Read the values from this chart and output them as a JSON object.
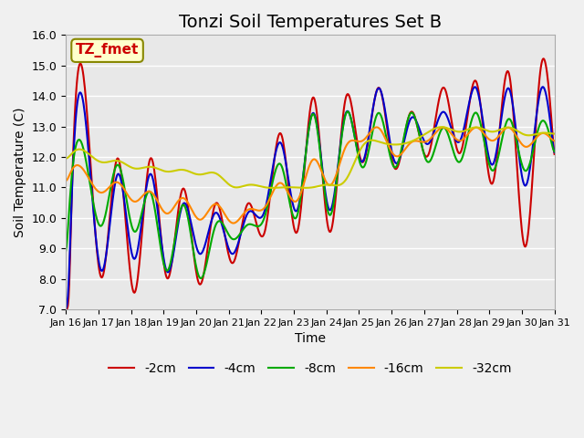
{
  "title": "Tonzi Soil Temperatures Set B",
  "xlabel": "Time",
  "ylabel": "Soil Temperature (C)",
  "ylim": [
    7.0,
    16.0
  ],
  "yticks": [
    7.0,
    8.0,
    9.0,
    10.0,
    11.0,
    12.0,
    13.0,
    14.0,
    15.0,
    16.0
  ],
  "xtick_labels": [
    "Jan 16",
    "Jan 17",
    "Jan 18",
    "Jan 19",
    "Jan 20",
    "Jan 21",
    "Jan 22",
    "Jan 23",
    "Jan 24",
    "Jan 25",
    "Jan 26",
    "Jan 27",
    "Jan 28",
    "Jan 29",
    "Jan 30",
    "Jan 31"
  ],
  "series_labels": [
    "-2cm",
    "-4cm",
    "-8cm",
    "-16cm",
    "-32cm"
  ],
  "series_colors": [
    "#cc0000",
    "#0000cc",
    "#00aa00",
    "#ff8800",
    "#cccc00"
  ],
  "annotation_text": "TZ_fmet",
  "annotation_color": "#cc0000",
  "annotation_bg": "#ffffcc",
  "annotation_border": "#888800",
  "fig_bg": "#f0f0f0",
  "plot_bg": "#e8e8e8",
  "grid_color": "#ffffff",
  "title_fontsize": 14,
  "axis_fontsize": 10,
  "tick_fontsize": 9,
  "legend_fontsize": 10,
  "n_points_per_day": 48,
  "n_days": 15
}
